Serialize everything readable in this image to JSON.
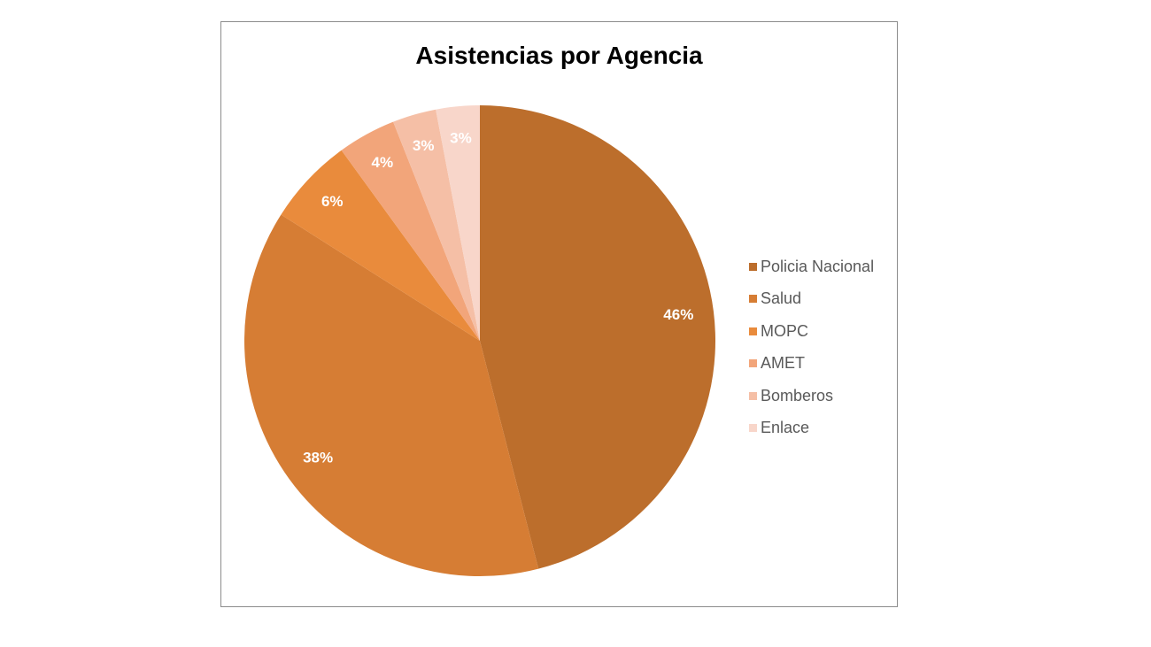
{
  "chart_data": {
    "type": "pie",
    "title": "Asistencias por Agencia",
    "legend_position": "right",
    "slices": [
      {
        "name": "Policia Nacional",
        "value": 46,
        "label": "46%",
        "color": "#BC6E2C"
      },
      {
        "name": "Salud",
        "value": 38,
        "label": "38%",
        "color": "#D67D34"
      },
      {
        "name": "MOPC",
        "value": 6,
        "label": "6%",
        "color": "#E98B3C"
      },
      {
        "name": "AMET",
        "value": 4,
        "label": "4%",
        "color": "#F2A57A"
      },
      {
        "name": "Bomberos",
        "value": 3,
        "label": "3%",
        "color": "#F5BFA6"
      },
      {
        "name": "Enlace",
        "value": 3,
        "label": "3%",
        "color": "#F8D6CA"
      }
    ]
  }
}
